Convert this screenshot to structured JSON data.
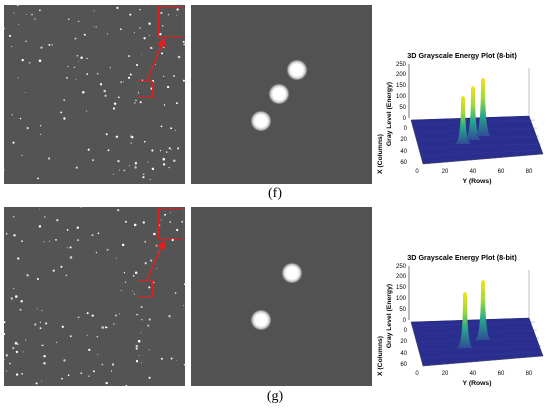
{
  "rows": [
    {
      "caption": "(f)",
      "plot": {
        "title": "3D Grayscale Energy Plot (8-bit)",
        "zlabel": "Gray Level (Energy)",
        "xlabel": "X (Columns)",
        "ylabel": "Y (Rows)",
        "z_ticks": [
          "0",
          "50",
          "100",
          "150",
          "200",
          "250"
        ],
        "x_ticks": [
          "0",
          "20",
          "40",
          "60"
        ],
        "y_ticks": [
          "0",
          "20",
          "40",
          "60",
          "80"
        ]
      }
    },
    {
      "caption": "(g)",
      "plot": {
        "title": "3D Grayscale Energy Plot (8-bit)",
        "zlabel": "Gray Level (Energy)",
        "xlabel": "X (Columns)",
        "ylabel": "Y (Rows)",
        "z_ticks": [
          "0",
          "50",
          "100",
          "150",
          "200",
          "250"
        ],
        "x_ticks": [
          "0",
          "20",
          "40",
          "60"
        ],
        "y_ticks": [
          "0",
          "20",
          "40",
          "60",
          "80"
        ]
      }
    }
  ]
}
